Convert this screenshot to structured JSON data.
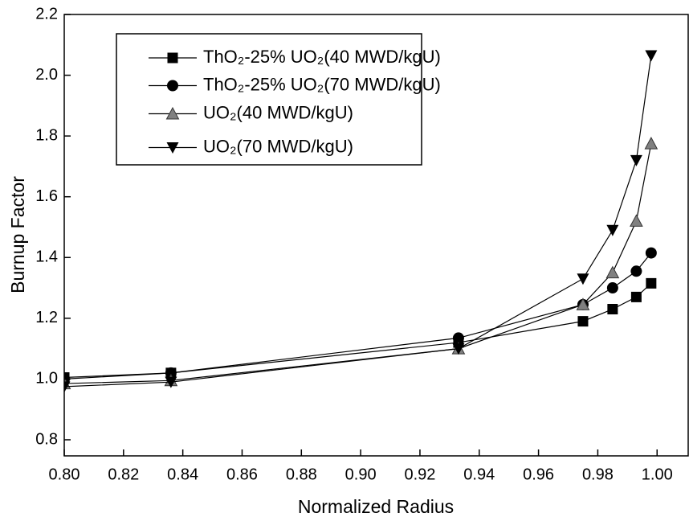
{
  "chart_data": {
    "type": "line",
    "x_label": "Normalized Radius",
    "y_label": "Burnup Factor",
    "x": [
      0.8,
      0.836,
      0.933,
      0.975,
      0.985,
      0.993,
      0.998
    ],
    "series": [
      {
        "name": "ThO₂-25% UO₂(40 MWD/kgU)",
        "color": "#000000",
        "marker": "square",
        "values": [
          1.005,
          1.02,
          1.12,
          1.19,
          1.23,
          1.27,
          1.315
        ]
      },
      {
        "name": "ThO₂-25% UO₂(70 MWD/kgU)",
        "color": "#000000",
        "marker": "circle",
        "values": [
          1.0,
          1.02,
          1.135,
          1.245,
          1.3,
          1.355,
          1.415
        ]
      },
      {
        "name": "UO₂(40 MWD/kgU)",
        "color": "#808080",
        "marker": "triangle-up",
        "values": [
          0.985,
          0.995,
          1.1,
          1.245,
          1.35,
          1.52,
          1.775
        ]
      },
      {
        "name": "UO₂(70 MWD/kgU)",
        "color": "#000000",
        "marker": "triangle-down",
        "values": [
          0.975,
          0.99,
          1.1,
          1.33,
          1.49,
          1.72,
          2.065
        ]
      }
    ],
    "xlim": [
      0.8,
      1.0105
    ],
    "ylim": [
      0.747,
      2.2
    ],
    "xticks": [
      {
        "value": 0.8,
        "label": "0.80"
      },
      0.82,
      0.84,
      0.86,
      0.88,
      {
        "value": 0.9,
        "label": "0.90"
      },
      0.92,
      0.94,
      0.96,
      0.98,
      {
        "value": 1.0,
        "label": "1.00"
      }
    ],
    "yticks": [
      0.8,
      {
        "value": 1.0,
        "label": "1.0"
      },
      1.2,
      1.4,
      1.6,
      1.8,
      {
        "value": 2.0,
        "label": "2.0"
      },
      2.2
    ],
    "legend": "upper-left"
  }
}
